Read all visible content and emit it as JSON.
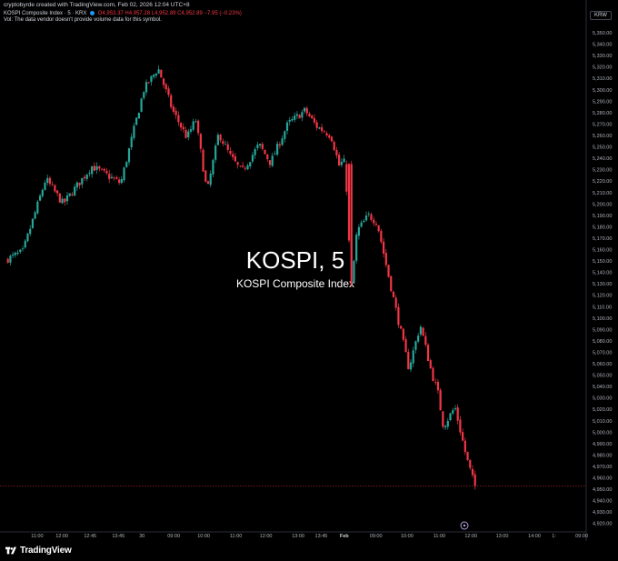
{
  "header": {
    "created": "cryptobyrde created with TradingView.com, Feb 02, 2026 12:04 UTC+8",
    "symbol": "KOSPI Composite Index · 5 · KRX",
    "open": "O4,953.37",
    "high": "H4,957.28",
    "low": "L4,952.89",
    "close": "C4,952.89",
    "change": "−7.95 (−0.23%)",
    "volume_note": "Vol: The data vendor doesn't provide volume data for this symbol."
  },
  "currency_badge": "KRW",
  "watermark": {
    "title": "KOSPI, 5",
    "subtitle": "KOSPI Composite Index"
  },
  "footer": {
    "logo_text": "TradingView"
  },
  "colors": {
    "up": "#26a69a",
    "down": "#f23645",
    "background": "#000000"
  },
  "chart_data": {
    "type": "candlestick",
    "y_ticks": [
      4920,
      4930,
      4940,
      4950,
      4960,
      4970,
      4980,
      4990,
      5000,
      5010,
      5020,
      5030,
      5040,
      5050,
      5060,
      5070,
      5080,
      5090,
      5100,
      5110,
      5120,
      5130,
      5140,
      5150,
      5160,
      5170,
      5180,
      5190,
      5200,
      5210,
      5220,
      5230,
      5240,
      5250,
      5260,
      5270,
      5280,
      5290,
      5300,
      5310,
      5320,
      5330,
      5340,
      5350
    ],
    "y_tick_labels": [
      "4,920.00",
      "4,930.00",
      "4,940.00",
      "4,950.00",
      "4,960.00",
      "4,970.00",
      "4,980.00",
      "4,990.00",
      "5,000.00",
      "5,010.00",
      "5,020.00",
      "5,030.00",
      "5,040.00",
      "5,050.00",
      "5,060.00",
      "5,070.00",
      "5,080.00",
      "5,090.00",
      "5,100.00",
      "5,110.00",
      "5,120.00",
      "5,130.00",
      "5,140.00",
      "5,150.00",
      "5,160.00",
      "5,170.00",
      "5,180.00",
      "5,190.00",
      "5,200.00",
      "5,210.00",
      "5,220.00",
      "5,230.00",
      "5,240.00",
      "5,250.00",
      "5,260.00",
      "5,270.00",
      "5,280.00",
      "5,290.00",
      "5,300.00",
      "5,310.00",
      "5,320.00",
      "5,330.00",
      "5,340.00",
      "5,350.00"
    ],
    "x_ticks": [
      {
        "label": "11:00",
        "t": 0.055
      },
      {
        "label": "12:00",
        "t": 0.098
      },
      {
        "label": "12:45",
        "t": 0.147
      },
      {
        "label": "13:45",
        "t": 0.196
      },
      {
        "label": "30",
        "t": 0.237
      },
      {
        "label": "09:00",
        "t": 0.292
      },
      {
        "label": "10:00",
        "t": 0.344
      },
      {
        "label": "11:00",
        "t": 0.4
      },
      {
        "label": "12:00",
        "t": 0.452
      },
      {
        "label": "13:00",
        "t": 0.508
      },
      {
        "label": "13:45",
        "t": 0.548
      },
      {
        "label": "Feb",
        "t": 0.588
      },
      {
        "label": "09:00",
        "t": 0.643
      },
      {
        "label": "10:00",
        "t": 0.697
      },
      {
        "label": "11:00",
        "t": 0.753
      },
      {
        "label": "12:00",
        "t": 0.808
      },
      {
        "label": "13:00",
        "t": 0.862
      },
      {
        "label": "14:00",
        "t": 0.918
      },
      {
        "label": "1:",
        "t": 0.952
      },
      {
        "label": "09:00",
        "t": 1.0
      }
    ],
    "anchors_t": [
      0.0,
      0.03,
      0.07,
      0.1,
      0.15,
      0.2,
      0.24,
      0.265,
      0.29,
      0.315,
      0.33,
      0.35,
      0.37,
      0.39,
      0.41,
      0.44,
      0.46,
      0.49,
      0.52,
      0.54,
      0.565,
      0.58,
      0.585,
      0.59,
      0.6,
      0.61,
      0.63,
      0.645,
      0.66,
      0.68,
      0.7,
      0.72,
      0.74,
      0.75,
      0.76,
      0.78,
      0.8,
      0.815
    ],
    "anchors_price": [
      5151,
      5158,
      5222,
      5200,
      5233,
      5218,
      5300,
      5319,
      5282,
      5258,
      5274,
      5210,
      5262,
      5242,
      5228,
      5252,
      5236,
      5270,
      5282,
      5268,
      5260,
      5232,
      5238,
      5235,
      5125,
      5176,
      5190,
      5184,
      5148,
      5102,
      5056,
      5094,
      5051,
      5036,
      5005,
      5022,
      4978,
      4952
    ],
    "candle_count": 190,
    "last_price": 4952.89,
    "price_range": [
      4915,
      5358
    ]
  }
}
